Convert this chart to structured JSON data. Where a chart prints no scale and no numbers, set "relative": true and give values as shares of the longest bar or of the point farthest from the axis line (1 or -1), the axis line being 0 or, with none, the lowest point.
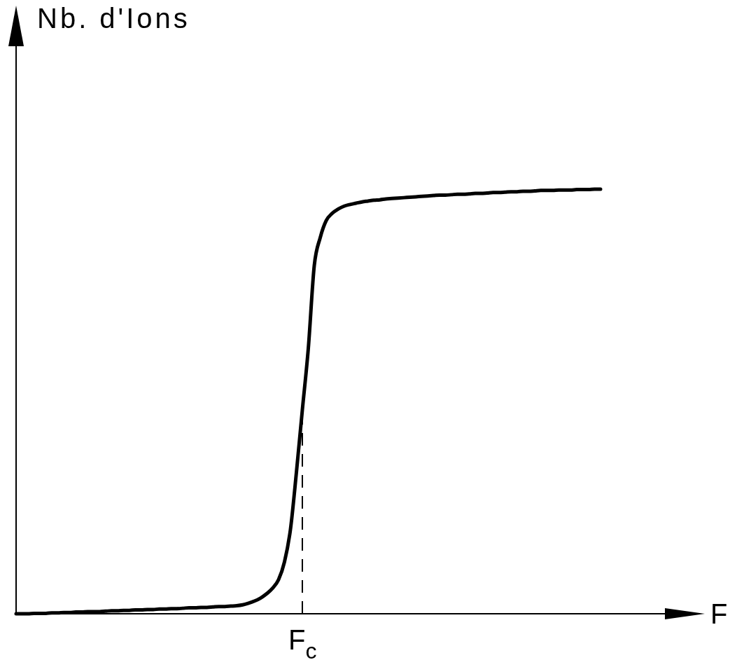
{
  "chart_data": {
    "type": "line",
    "xlabel": "F",
    "annotations": [
      "Nb. d'Ions",
      "F$_{c}$"
    ],
    "relative": true,
    "categories": [
      null,
      null,
      null,
      null,
      null,
      null,
      null,
      null,
      null,
      null,
      null,
      null,
      null,
      null,
      null,
      null,
      null,
      null,
      null,
      null,
      null,
      null,
      null,
      null,
      null,
      null,
      null,
      null,
      null,
      null,
      null,
      null,
      null,
      null,
      null,
      null,
      null,
      null,
      null,
      null,
      null,
      null,
      null,
      null,
      null,
      null,
      null,
      null,
      null,
      null,
      null,
      null,
      null,
      null,
      null,
      null,
      null,
      null,
      null,
      null,
      null,
      null,
      null,
      null,
      null,
      null,
      null,
      null,
      null,
      null,
      null,
      null,
      null,
      null,
      null,
      null,
      null,
      null,
      null,
      null,
      null,
      null,
      null,
      null,
      null,
      null,
      null,
      null,
      null,
      null,
      null,
      null,
      null,
      null,
      null,
      null,
      null,
      null,
      null
    ],
    "values": [
      0,
      0,
      0,
      0.001,
      0.001,
      0.001,
      0.002,
      0.002,
      0.003,
      0.003,
      0.004,
      0.004,
      0.005,
      0.005,
      0.005,
      0.006,
      0.007,
      0.007,
      0.008,
      0.008,
      0.009,
      0.009,
      0.01,
      0.01,
      0.011,
      0.011,
      0.012,
      0.012,
      0.013,
      0.014,
      0.014,
      0.015,
      0.015,
      0.016,
      0.017,
      0.017,
      0.018,
      0.019,
      0.021,
      0.025,
      0.03,
      0.037,
      0.047,
      0.06,
      0.08,
      0.122,
      0.198,
      0.332,
      0.48,
      0.625,
      0.82,
      0.886,
      0.926,
      0.943,
      0.953,
      0.96,
      0.964,
      0.967,
      0.97,
      0.972,
      0.974,
      0.975,
      0.977,
      0.978,
      0.979,
      0.98,
      0.981,
      0.982,
      0.983,
      0.984,
      0.985,
      0.986,
      0.986,
      0.987,
      0.988,
      0.988,
      0.989,
      0.99,
      0.99,
      0.991,
      0.992,
      0.992,
      0.993,
      0.994,
      0.994,
      0.995,
      0.995,
      0.996,
      0.997,
      0.997,
      0.997,
      0.998,
      0.998,
      0.998,
      0.999,
      0.999,
      0.999,
      1.0,
      1.0
    ],
    "color": "#000000"
  }
}
